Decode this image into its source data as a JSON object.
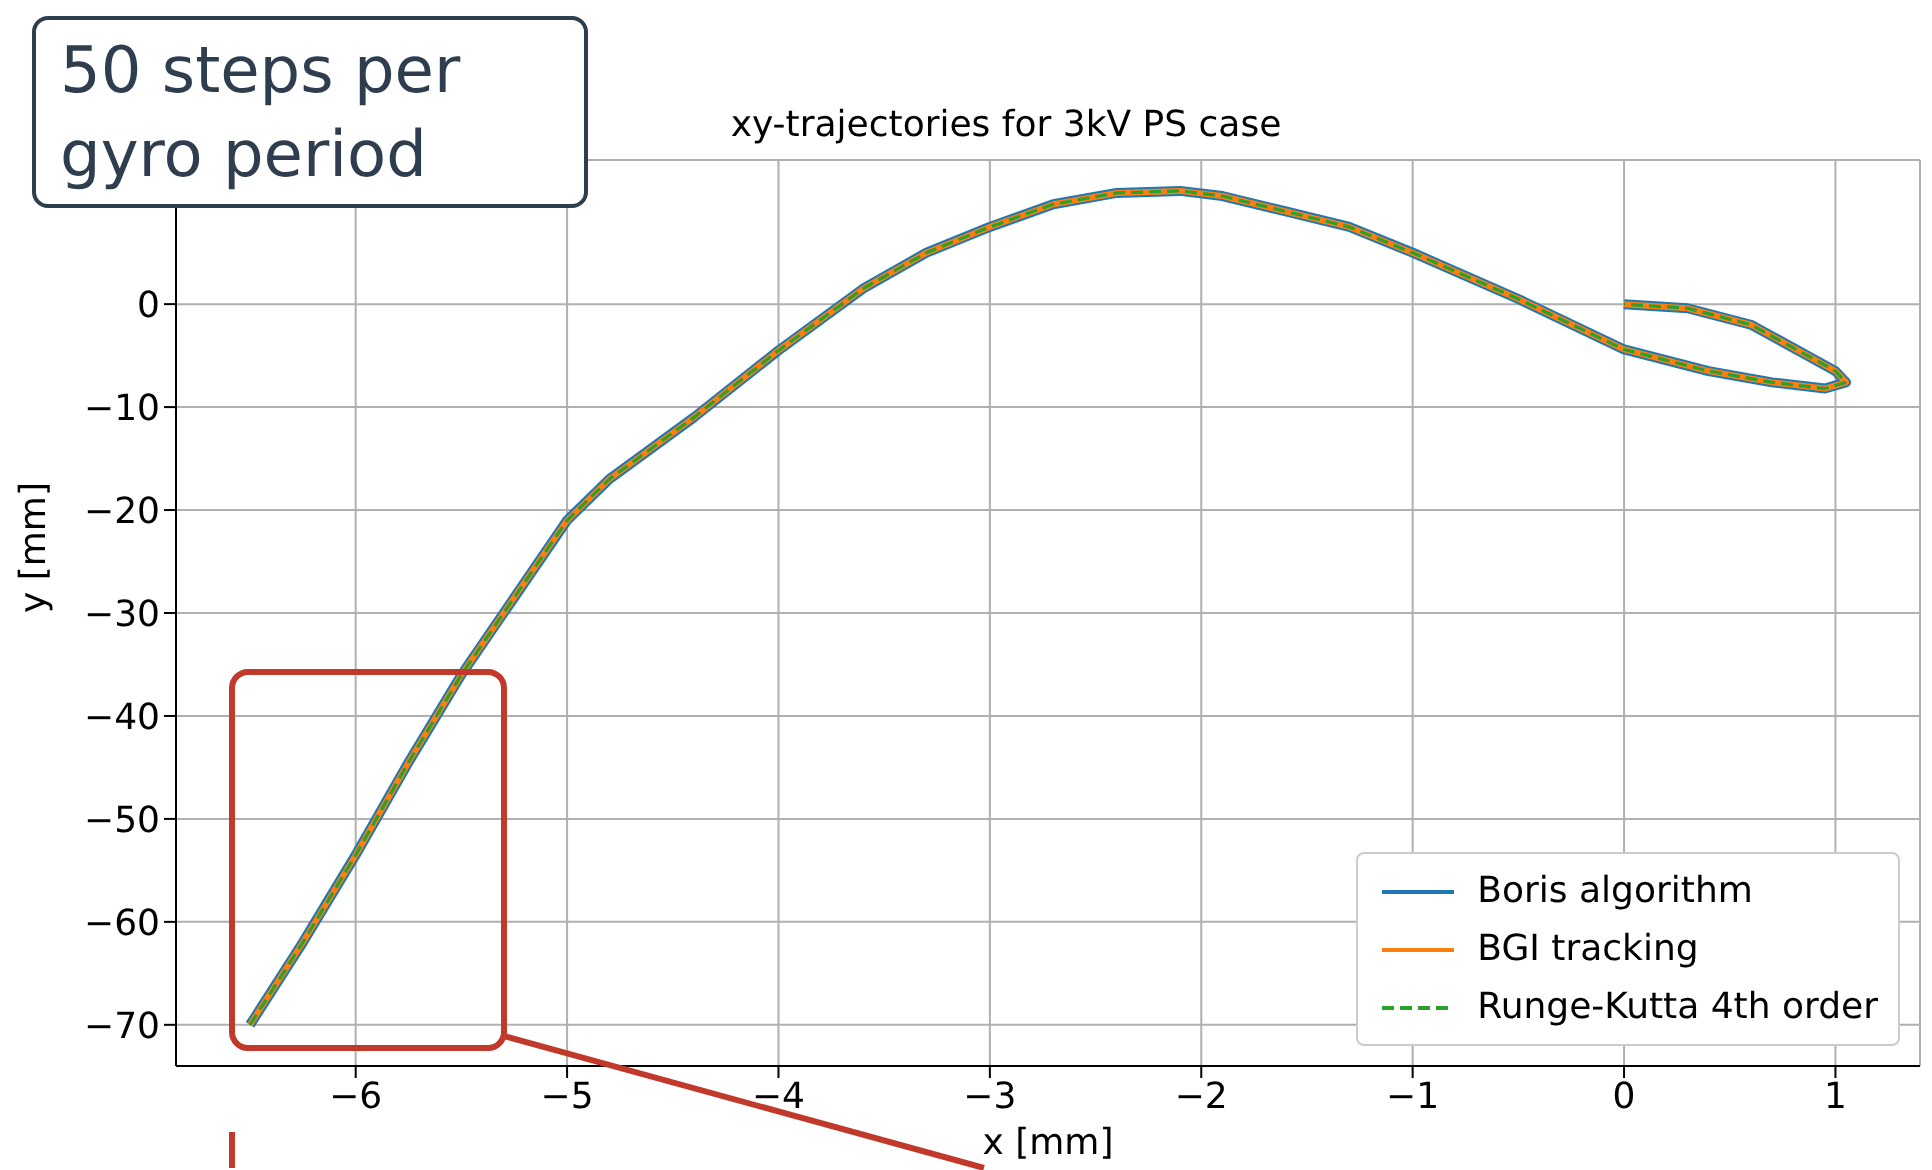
{
  "chart_data": {
    "type": "line",
    "title": "xy-trajectories for 3kV PS case",
    "xlabel": "x [mm]",
    "ylabel": "y [mm]",
    "annotations": [
      "50 steps per gyro period"
    ],
    "x": [
      -6.5,
      -6.25,
      -6,
      -5.75,
      -5.5,
      -5.25,
      -5,
      -4.8,
      -4.4,
      -4,
      -3.6,
      -3.3,
      -3,
      -2.7,
      -2.4,
      -2.1,
      -1.9,
      -1.6,
      -1.3,
      -1,
      -0.5,
      0,
      0.4,
      0.7,
      0.95,
      1.05,
      1,
      0.85,
      0.6,
      0.3,
      0
    ],
    "series": [
      {
        "name": "Boris algorithm",
        "color": "#1f77b4",
        "values": [
          -70,
          -62,
          -53.5,
          -44.5,
          -36,
          -28.5,
          -21,
          -17,
          -11,
          -4.5,
          1.5,
          5,
          7.5,
          9.7,
          10.8,
          11,
          10.5,
          9,
          7.5,
          5,
          0.5,
          -4.4,
          -6.5,
          -7.6,
          -8.2,
          -7.6,
          -6.5,
          -4.8,
          -2,
          -0.4,
          0
        ]
      },
      {
        "name": "BGI tracking",
        "color": "#ff7f0e",
        "values": [
          -70,
          -62,
          -53.5,
          -44.5,
          -36,
          -28.5,
          -21,
          -17,
          -11,
          -4.5,
          1.5,
          5,
          7.5,
          9.7,
          10.8,
          11,
          10.5,
          9,
          7.5,
          5,
          0.5,
          -4.4,
          -6.5,
          -7.6,
          -8.2,
          -7.6,
          -6.5,
          -4.8,
          -2,
          -0.4,
          0
        ]
      },
      {
        "name": "Runge-Kutta 4th order",
        "color": "#2ca02c",
        "line_style": "dashed",
        "values": [
          -70,
          -62,
          -53.5,
          -44.5,
          -36,
          -28.5,
          -21,
          -17,
          -11,
          -4.5,
          1.5,
          5,
          7.5,
          9.7,
          10.8,
          11,
          10.5,
          9,
          7.5,
          5,
          0.5,
          -4.4,
          -6.5,
          -7.6,
          -8.2,
          -7.6,
          -6.5,
          -4.8,
          -2,
          -0.4,
          0
        ]
      }
    ],
    "xlim": [
      -6.85,
      1.4
    ],
    "xticks": [
      -6,
      -5,
      -4,
      -3,
      -2,
      -1,
      0,
      1
    ],
    "ylim": [
      -74,
      14
    ],
    "yticks": [
      -70,
      -60,
      -50,
      -40,
      -30,
      -20,
      -10,
      0
    ],
    "grid": true,
    "legend": "bottom right",
    "marker": "none",
    "line_style": "solid"
  }
}
